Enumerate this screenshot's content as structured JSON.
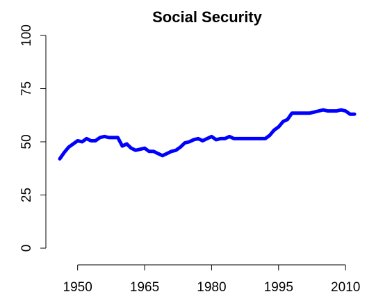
{
  "chart_data": {
    "type": "line",
    "title": "Social Security",
    "x": [
      1946,
      1947,
      1948,
      1949,
      1950,
      1951,
      1952,
      1953,
      1954,
      1955,
      1956,
      1957,
      1958,
      1959,
      1960,
      1961,
      1962,
      1963,
      1964,
      1965,
      1966,
      1967,
      1968,
      1969,
      1970,
      1971,
      1972,
      1973,
      1974,
      1975,
      1976,
      1977,
      1978,
      1979,
      1980,
      1981,
      1982,
      1983,
      1984,
      1985,
      1986,
      1987,
      1988,
      1989,
      1990,
      1991,
      1992,
      1993,
      1994,
      1995,
      1996,
      1997,
      1998,
      1999,
      2000,
      2001,
      2002,
      2003,
      2004,
      2005,
      2006,
      2007,
      2008,
      2009,
      2010,
      2011,
      2012
    ],
    "series": [
      {
        "name": "Social Security",
        "color": "#0000ff",
        "values": [
          42,
          45,
          47.5,
          49,
          50.5,
          50,
          51.5,
          50.5,
          50.5,
          52,
          52.5,
          52,
          52,
          52,
          48,
          49,
          47,
          46,
          46.5,
          47,
          45.5,
          45.5,
          44.5,
          43.5,
          44.5,
          45.5,
          46,
          47.5,
          49.5,
          50,
          51,
          51.5,
          50.5,
          51.5,
          52.5,
          51,
          51.5,
          51.5,
          52.5,
          51.5,
          51.5,
          51.5,
          51.5,
          51.5,
          51.5,
          51.5,
          51.5,
          53,
          55.5,
          57,
          59.5,
          60.5,
          63.5,
          63.5,
          63.5,
          63.5,
          63.5,
          64,
          64.5,
          65,
          64.5,
          64.5,
          64.5,
          65,
          64.5,
          63,
          63
        ]
      }
    ],
    "xlim": [
      1946,
      2012
    ],
    "xticks": [
      1950,
      1965,
      1980,
      1995,
      2010
    ],
    "ylim": [
      0,
      100
    ],
    "yticks": [
      0,
      25,
      50,
      75,
      100
    ]
  }
}
